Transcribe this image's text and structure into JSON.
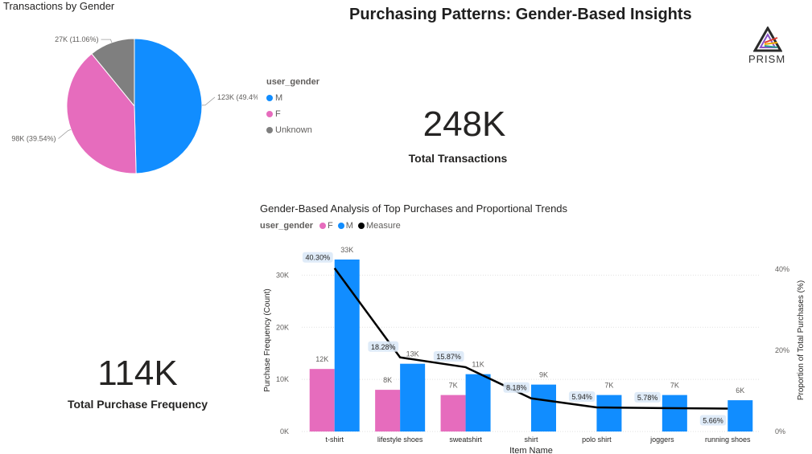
{
  "title": "Purchasing Patterns: Gender-Based Insights",
  "logo_text": "PRISM",
  "pie": {
    "title": "Transactions by Gender",
    "legend_title": "user_gender",
    "slices": [
      {
        "name": "M",
        "value": 123,
        "label": "123K (49.4%)",
        "color": "#118dff"
      },
      {
        "name": "F",
        "value": 98,
        "label": "98K (39.54%)",
        "color": "#e66cbd"
      },
      {
        "name": "Unknown",
        "value": 27,
        "label": "27K (11.06%)",
        "color": "#7f7f7f"
      }
    ]
  },
  "kpi_transactions": {
    "value": "248K",
    "label": "Total Transactions"
  },
  "kpi_frequency": {
    "value": "114K",
    "label": "Total Purchase Frequency"
  },
  "combo": {
    "title": "Gender-Based Analysis of Top Purchases and Proportional Trends",
    "legend_title": "user_gender",
    "legend": [
      {
        "name": "F",
        "color": "#e66cbd"
      },
      {
        "name": "M",
        "color": "#118dff"
      },
      {
        "name": "Measure",
        "color": "#000000"
      }
    ],
    "xlabel": "Item Name",
    "ylabel": "Purchase Frequency (Count)",
    "y2label": "Proportion of Total Purchases (%)",
    "y_ticks": [
      "0K",
      "10K",
      "20K",
      "30K"
    ],
    "y2_ticks": [
      "0%",
      "20%",
      "40%"
    ]
  },
  "chart_data": [
    {
      "type": "pie",
      "title": "Transactions by Gender",
      "categories": [
        "M",
        "F",
        "Unknown"
      ],
      "values": [
        123000,
        98000,
        27000
      ],
      "labels": [
        "123K (49.4%)",
        "98K (39.54%)",
        "27K (11.06%)"
      ],
      "legend": "left"
    },
    {
      "type": "bar",
      "title": "Gender-Based Analysis of Top Purchases and Proportional Trends",
      "categories": [
        "t-shirt",
        "lifestyle shoes",
        "sweatshirt",
        "shirt",
        "polo shirt",
        "joggers",
        "running shoes"
      ],
      "series": [
        {
          "name": "F",
          "values": [
            12000,
            8000,
            7000,
            null,
            null,
            null,
            null
          ],
          "labels": [
            "12K",
            "8K",
            "7K",
            "",
            "",
            "",
            ""
          ]
        },
        {
          "name": "M",
          "values": [
            33000,
            13000,
            11000,
            9000,
            7000,
            7000,
            6000
          ],
          "labels": [
            "33K",
            "13K",
            "11K",
            "9K",
            "7K",
            "7K",
            "6K"
          ]
        },
        {
          "name": "Measure",
          "type": "line",
          "axis": "secondary",
          "values": [
            40.3,
            18.28,
            15.87,
            8.18,
            5.94,
            5.78,
            5.66
          ],
          "labels": [
            "40.30%",
            "18.28%",
            "15.87%",
            "8.18%",
            "5.94%",
            "5.78%",
            "5.66%"
          ]
        }
      ],
      "xlabel": "Item Name",
      "ylabel": "Purchase Frequency (Count)",
      "y2label": "Proportion of Total Purchases (%)",
      "ylim": [
        0,
        35000
      ],
      "y2lim": [
        0,
        45
      ],
      "grid": true,
      "legend": "top-left"
    }
  ]
}
